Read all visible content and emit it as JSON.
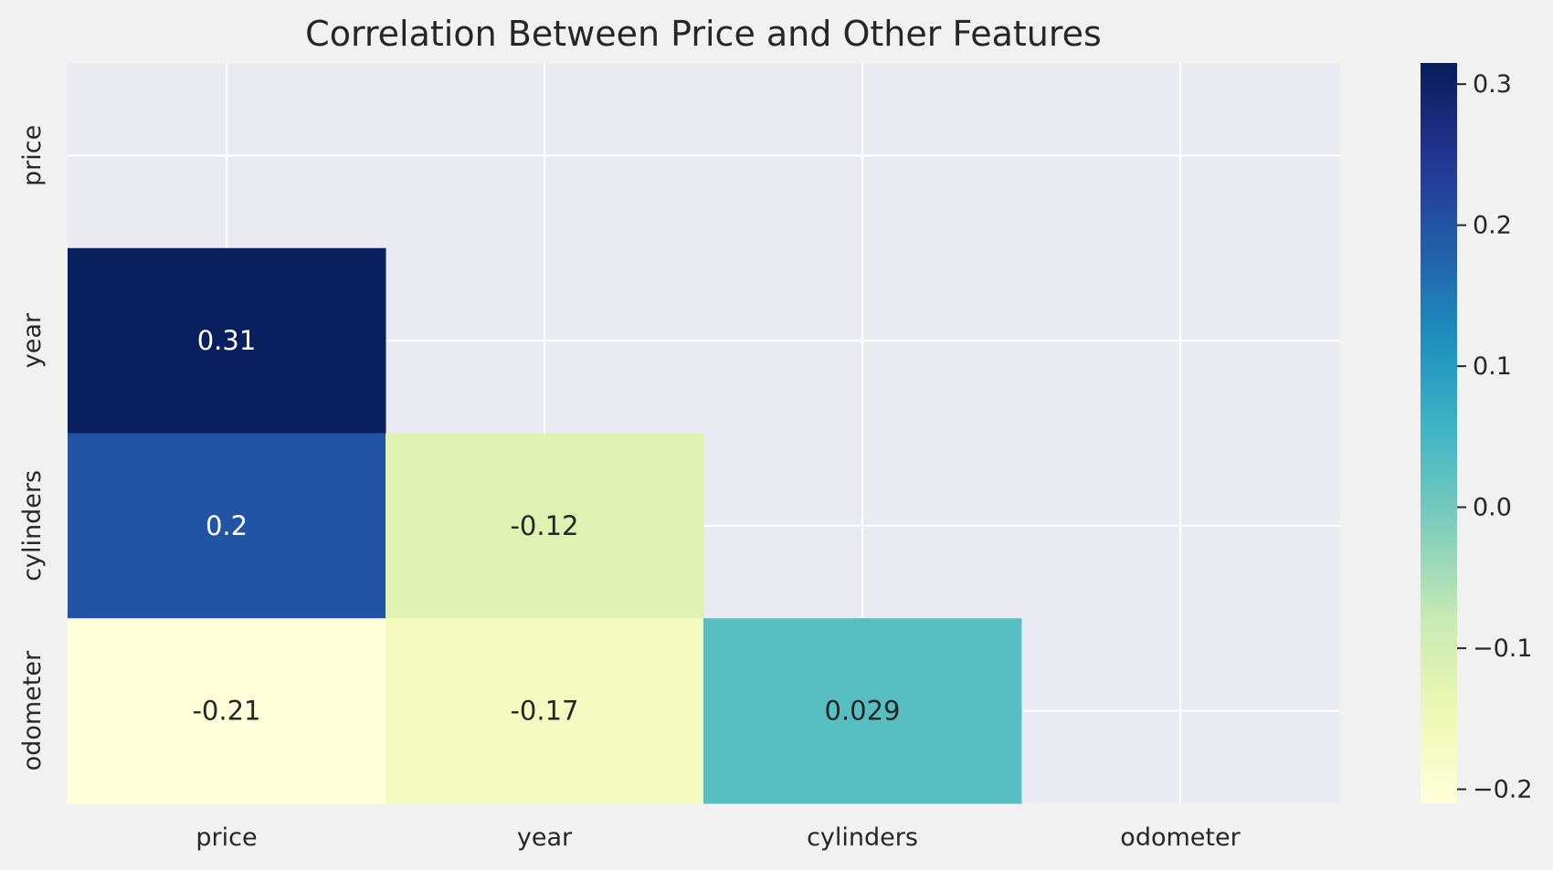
{
  "chart_data": {
    "type": "heatmap",
    "title": "Correlation Between Price and Other Features",
    "x_labels": [
      "price",
      "year",
      "cylinders",
      "odometer"
    ],
    "y_labels": [
      "price",
      "year",
      "cylinders",
      "odometer"
    ],
    "mask": "upper-triangle-including-diagonal",
    "cells": [
      {
        "row": 1,
        "col": 0,
        "value": 0.31,
        "label": "0.31"
      },
      {
        "row": 2,
        "col": 0,
        "value": 0.2,
        "label": "0.2"
      },
      {
        "row": 2,
        "col": 1,
        "value": -0.12,
        "label": "-0.12"
      },
      {
        "row": 3,
        "col": 0,
        "value": -0.21,
        "label": "-0.21"
      },
      {
        "row": 3,
        "col": 1,
        "value": -0.17,
        "label": "-0.17"
      },
      {
        "row": 3,
        "col": 2,
        "value": 0.029,
        "label": "0.029"
      }
    ],
    "colormap": "YlGnBu",
    "color_range": [
      -0.21,
      0.315
    ],
    "colorbar_ticks": [
      {
        "value": 0.3,
        "label": "0.3"
      },
      {
        "value": 0.2,
        "label": "0.2"
      },
      {
        "value": 0.1,
        "label": "0.1"
      },
      {
        "value": 0.0,
        "label": "0.0"
      },
      {
        "value": -0.1,
        "label": "−0.1"
      },
      {
        "value": -0.2,
        "label": "−0.2"
      }
    ],
    "grid": true,
    "colors": {
      "background": "#f1f1f1",
      "plot_background": "#eaeaf2",
      "grid": "#ffffff",
      "text": "#262626"
    }
  }
}
